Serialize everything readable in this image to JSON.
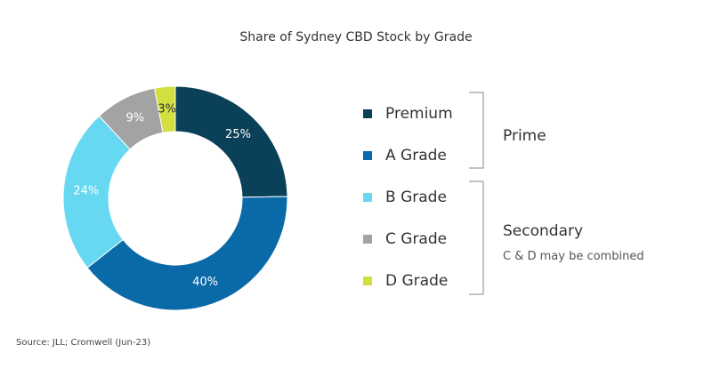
{
  "chart_data": {
    "type": "pie",
    "title": "Share of Sydney CBD Stock by Grade",
    "donut": true,
    "slices": [
      {
        "name": "Premium",
        "value": 25,
        "label": "25%",
        "color": "#0b4158"
      },
      {
        "name": "A Grade",
        "value": 40,
        "label": "40%",
        "color": "#0a6aa8"
      },
      {
        "name": "B Grade",
        "value": 24,
        "label": "24%",
        "color": "#66d8f2"
      },
      {
        "name": "C Grade",
        "value": 9,
        "label": "9%",
        "color": "#a3a3a3"
      },
      {
        "name": "D Grade",
        "value": 3,
        "label": "3%",
        "color": "#d2df3e"
      }
    ],
    "legend": "right",
    "groups": [
      {
        "label": "Prime",
        "members": [
          "Premium",
          "A Grade"
        ],
        "note": ""
      },
      {
        "label": "Secondary",
        "members": [
          "B Grade",
          "C Grade",
          "D Grade"
        ],
        "note": "C & D may be combined"
      }
    ]
  },
  "source": "Source: JLL; Cromwell (Jun-23)"
}
